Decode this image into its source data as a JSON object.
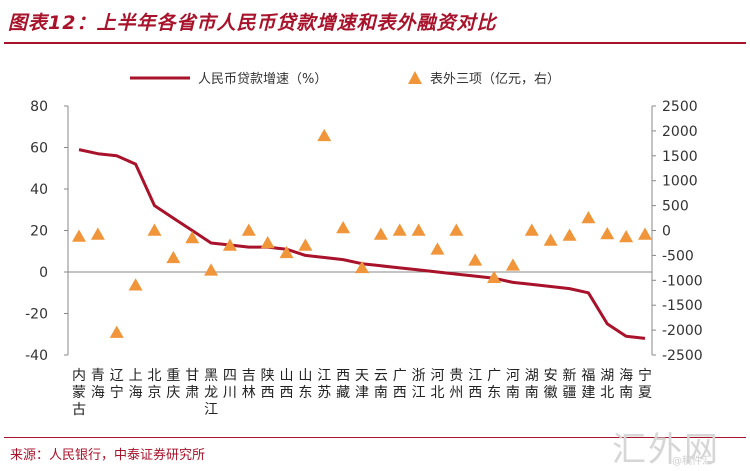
{
  "header": {
    "title": "图表12：上半年各省市人民币贷款增速和表外融资对比"
  },
  "footer": {
    "source": "来源：人民银行，中泰证券研究所",
    "watermark": "汇外网",
    "watermark_sub": "@稿件汇"
  },
  "chart_data": {
    "type": "line",
    "provinces": [
      "内蒙古",
      "青海",
      "辽宁",
      "上海",
      "北京",
      "重庆",
      "甘肃",
      "黑龙江",
      "四川",
      "吉林",
      "陕西",
      "山西",
      "山东",
      "江苏",
      "西藏",
      "天津",
      "云南",
      "广西",
      "浙江",
      "河北",
      "贵州",
      "江西",
      "广东",
      "河南",
      "湖南",
      "安徽",
      "新疆",
      "福建",
      "湖北",
      "海南",
      "宁夏"
    ],
    "series": [
      {
        "name": "人民币贷款增速（%）",
        "axis": "left",
        "color": "#a8122a",
        "values": [
          59,
          57,
          56,
          52,
          32,
          26,
          20,
          14,
          13,
          12,
          12,
          11,
          8,
          7,
          6,
          4,
          3,
          2,
          1,
          0,
          -1,
          -2,
          -3,
          -5,
          -6,
          -7,
          -8,
          -10,
          -25,
          -31,
          -32
        ]
      },
      {
        "name": "表外三项（亿元，右）",
        "axis": "right",
        "color": "#f0953a",
        "values": [
          -120,
          -80,
          -2050,
          -1100,
          0,
          -550,
          -150,
          -800,
          -300,
          0,
          -250,
          -450,
          -300,
          1900,
          50,
          -750,
          -80,
          0,
          0,
          -380,
          0,
          -600,
          -950,
          -700,
          0,
          -200,
          -100,
          250,
          -70,
          -130,
          -80
        ]
      }
    ],
    "left_axis": {
      "min": -40,
      "max": 80,
      "ticks": [
        -40,
        -20,
        0,
        20,
        40,
        60,
        80
      ]
    },
    "right_axis": {
      "min": -2500,
      "max": 2500,
      "ticks": [
        -2500,
        -2000,
        -1500,
        -1000,
        -500,
        0,
        500,
        1000,
        1500,
        2000,
        2500
      ]
    },
    "legend_position": "top",
    "grid": false
  }
}
